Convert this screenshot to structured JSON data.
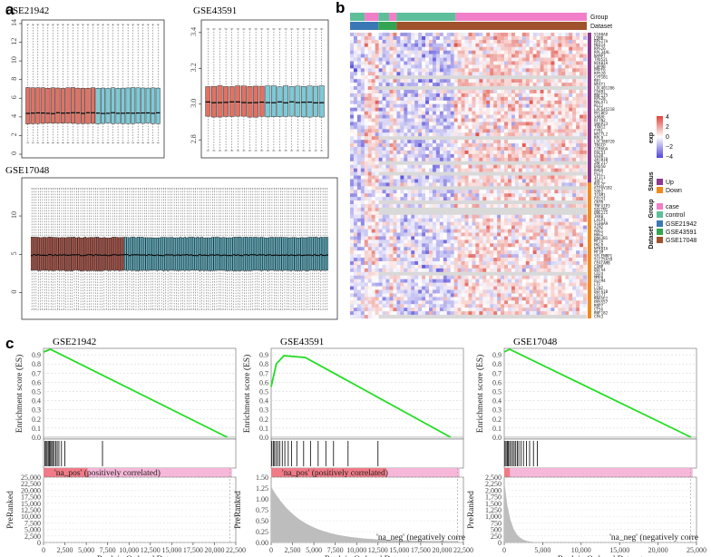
{
  "panel_labels": {
    "a": "a",
    "b": "b",
    "c": "c"
  },
  "chart_data": [
    {
      "id": "a1",
      "type": "boxplot",
      "title": "GSE21942",
      "ylim": [
        0,
        14
      ],
      "yticks": [
        "0",
        "2",
        "4",
        "6",
        "8",
        "10",
        "12",
        "14"
      ],
      "n_boxes": 27,
      "groups": [
        {
          "count": 14,
          "color": "#e07264"
        },
        {
          "count": 13,
          "color": "#7ec9d6"
        }
      ],
      "q1": 3.3,
      "median": 4.4,
      "q3": 7.1,
      "whisker_low": 1.2,
      "whisker_high": 13.9
    },
    {
      "id": "a2",
      "type": "boxplot",
      "title": "GSE43591",
      "ylim": [
        2.72,
        3.45
      ],
      "yticks": [
        "2.8",
        "3.0",
        "3.2",
        "3.4"
      ],
      "n_boxes": 20,
      "groups": [
        {
          "count": 10,
          "color": "#e07264"
        },
        {
          "count": 10,
          "color": "#7ec9d6"
        }
      ],
      "q1": 2.93,
      "median": 3.01,
      "q3": 3.1,
      "whisker_low": 2.74,
      "whisker_high": 3.42
    },
    {
      "id": "a3",
      "type": "boxplot",
      "title": "GSE17048",
      "ylim": [
        -3,
        14.5
      ],
      "yticks": [
        "0",
        "5",
        "10"
      ],
      "n_boxes": 140,
      "groups": [
        {
          "count": 44,
          "color": "#b5574b"
        },
        {
          "count": 96,
          "color": "#5fb3c6"
        }
      ],
      "q1": 2.9,
      "median": 4.9,
      "q3": 7.2,
      "whisker_low": -2.2,
      "whisker_high": 13.6
    },
    {
      "id": "b",
      "type": "heatmap",
      "annotation_rows": [
        "Group",
        "Dataset"
      ],
      "group_segments": [
        {
          "label": "control",
          "from": 0,
          "to": 0.062
        },
        {
          "label": "case",
          "from": 0.062,
          "to": 0.12
        },
        {
          "label": "control",
          "from": 0.12,
          "to": 0.165
        },
        {
          "label": "case",
          "from": 0.165,
          "to": 0.196
        },
        {
          "label": "control",
          "from": 0.196,
          "to": 0.445
        },
        {
          "label": "case",
          "from": 0.445,
          "to": 1
        }
      ],
      "dataset_segments": [
        {
          "label": "GSE21942",
          "from": 0,
          "to": 0.12
        },
        {
          "label": "GSE43591",
          "from": 0.12,
          "to": 0.196
        },
        {
          "label": "GSE17048",
          "from": 0.196,
          "to": 1
        }
      ],
      "status_split": 0.52,
      "color_scale": {
        "min": -4,
        "max": 4,
        "ticks": [
          "4",
          "2",
          "0",
          "−2",
          "−4"
        ]
      },
      "legend": {
        "exp_title": "exp",
        "status_title": "Status",
        "status_items": [
          {
            "label": "Up",
            "color": "#8b3a8f"
          },
          {
            "label": "Down",
            "color": "#f28a1b"
          }
        ],
        "group_title": "Group",
        "group_items": [
          {
            "label": "case",
            "color": "#f17ec8"
          },
          {
            "label": "control",
            "color": "#5cbf9a"
          }
        ],
        "dataset_title": "Dataset",
        "dataset_items": [
          {
            "label": "GSE21942",
            "color": "#3a78b5"
          },
          {
            "label": "GSE43591",
            "color": "#33a552"
          },
          {
            "label": "GSE17048",
            "color": "#a0522d"
          }
        ]
      },
      "genes": [
        "S100A8",
        "LDHB",
        "RPS17A",
        "MED14",
        "RPS26",
        "RPL34AL",
        "NAMPT",
        "TPD52L",
        "NFKBIA",
        "LBP9B",
        "PRPF6",
        "RPS20",
        "CYP1B1",
        "RB1",
        "NEAT1",
        "LOC401206",
        "CD4B1",
        "RNF175",
        "RPS28",
        "MALAT1",
        "RG12",
        "LOC645218",
        "MYCBP2",
        "SARAF",
        "RFTN2",
        "SNAP23",
        "TXN12",
        "FYBL",
        "NECTL2",
        "RPL8",
        "LOC388720",
        "TBGCP",
        "CCR6GA",
        "PACS1",
        "GS30",
        "ZBTB10",
        "ZNF217",
        "DRD50",
        "RHOA",
        "PLC7",
        "IFIT1",
        "IRF7",
        "ROC2F",
        "ATP6V1B2",
        "SOD2",
        "ICAM1",
        "CD151",
        "CNTR",
        "TNFAIP3",
        "SECTM1",
        "UBE2J1",
        "IKKB",
        "LASP1",
        "S100A9",
        "AIM2",
        "ARG1",
        "HBG2",
        "DNAJB1",
        "MT2A",
        "PKLR",
        "NFKBIA",
        "MT1M",
        "SELENBP1",
        "SLC25A39",
        "CEACAM8",
        "CAMP",
        "DEFA4",
        "CD24",
        "MMP8",
        "OLFM4",
        "LTF",
        "LCN2",
        "DEFA1B",
        "CD177",
        "RNASE2",
        "PRSS57",
        "RBP7",
        "CTSG",
        "RNF182",
        "CPA3"
      ]
    },
    {
      "id": "c1",
      "type": "gsea",
      "title": "GSE21942",
      "es_label": "Enrichment score (ES)",
      "es_ticks": [
        "0.0",
        "0.1",
        "0.2",
        "0.3",
        "0.4",
        "0.5",
        "0.6",
        "0.7",
        "0.8",
        "0.9"
      ],
      "es_curve": [
        [
          0,
          0.93
        ],
        [
          800,
          0.96
        ],
        [
          21500,
          0.0
        ]
      ],
      "ranked_label": "PreRanked",
      "ranked_ylim": [
        0,
        25000
      ],
      "ranked_ticks": [
        "0",
        "2,500",
        "5,000",
        "7,500",
        "10,000",
        "12,500",
        "15,000",
        "17,500",
        "20,000",
        "22,500",
        "25,000"
      ],
      "x_ticks": [
        "0",
        "2,500",
        "5,000",
        "7,500",
        "10,000",
        "12,500",
        "15,000",
        "17,500",
        "20,000",
        "22,500"
      ],
      "xmax": 22500,
      "xlabel": "Rank in Ordered Dataset",
      "pos_label": "'na_pos' (positively correlated)",
      "neg_label": "",
      "hits": [
        150,
        300,
        420,
        560,
        700,
        820,
        950,
        1080,
        1250,
        1420,
        1600,
        1800,
        2100,
        2500,
        6900
      ]
    },
    {
      "id": "c2",
      "type": "gsea",
      "title": "GSE43591",
      "es_label": "Enrichment score (ES)",
      "es_ticks": [
        "0.0",
        "0.1",
        "0.2",
        "0.3",
        "0.4",
        "0.5",
        "0.6",
        "0.7",
        "0.8",
        "0.9"
      ],
      "es_curve": [
        [
          0,
          0.55
        ],
        [
          600,
          0.8
        ],
        [
          1500,
          0.89
        ],
        [
          4000,
          0.87
        ],
        [
          21000,
          0.0
        ]
      ],
      "ranked_label": "PreRanked",
      "ranked_ylim": [
        0,
        1.5
      ],
      "ranked_ticks": [
        "0.00",
        "0.25",
        "0.50",
        "0.75",
        "1.00",
        "1.25",
        "1.50"
      ],
      "x_ticks": [
        "0",
        "2,500",
        "5,000",
        "7,500",
        "10,000",
        "12,500",
        "15,000",
        "17,500",
        "20,000",
        "22,500"
      ],
      "xmax": 22500,
      "xlabel": "Rank in Ordered Dataset",
      "pos_label": "'na_pos' (positively correlated)",
      "neg_label": "'na_neg' (negatively corre",
      "hits": [
        80,
        250,
        400,
        600,
        800,
        1000,
        1300,
        1600,
        2000,
        2400,
        3000,
        3800,
        4600,
        5500,
        6400,
        7300,
        9000,
        12500
      ]
    },
    {
      "id": "c3",
      "type": "gsea",
      "title": "GSE17048",
      "es_label": "Enrichment score (ES)",
      "es_ticks": [
        "0.0",
        "0.1",
        "0.2",
        "0.3",
        "0.4",
        "0.5",
        "0.6",
        "0.7",
        "0.8",
        "0.9"
      ],
      "es_curve": [
        [
          0,
          0.93
        ],
        [
          700,
          0.96
        ],
        [
          24300,
          0.0
        ]
      ],
      "ranked_label": "PreRanked",
      "ranked_ylim": [
        0,
        2500
      ],
      "ranked_ticks": [
        "0",
        "250",
        "500",
        "750",
        "1,000",
        "1,250",
        "1,500",
        "1,750",
        "2,000",
        "2,250",
        "2,500"
      ],
      "x_ticks": [
        "0",
        "5,000",
        "10,000",
        "15,000",
        "20,000",
        "25,000"
      ],
      "xmax": 25000,
      "xlabel": "Rank in Ordered Dataset",
      "pos_label": "",
      "neg_label": "'na_neg' (negatively corre",
      "hits": [
        100,
        250,
        400,
        550,
        700,
        900,
        1100,
        1300,
        1500,
        1700,
        1900,
        2200,
        2500,
        2900,
        3300,
        3800,
        4300
      ]
    }
  ]
}
